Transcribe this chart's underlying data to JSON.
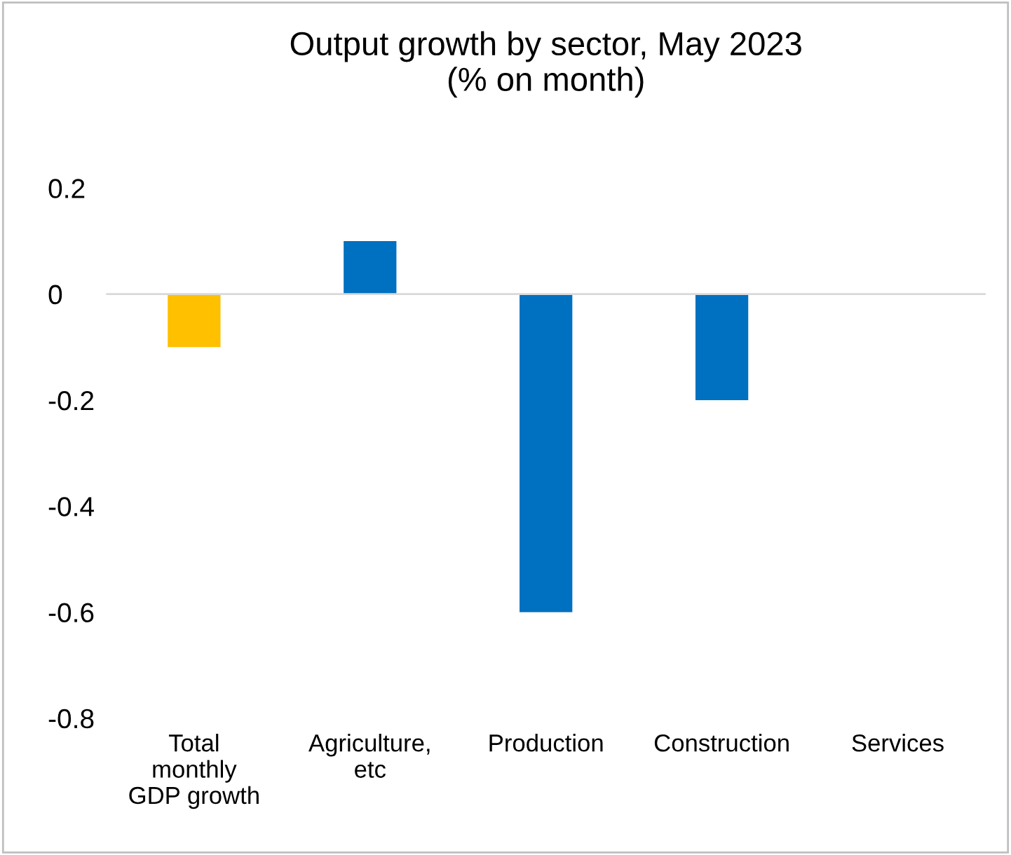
{
  "chart_data": {
    "type": "bar",
    "title": "Output growth by sector, May 2023\n(% on month)",
    "categories": [
      "Total\nmonthly\nGDP growth",
      "Agriculture,\netc",
      "Production",
      "Construction",
      "Services"
    ],
    "values": [
      -0.1,
      0.1,
      -0.6,
      -0.2,
      0
    ],
    "colors": [
      "#ffc000",
      "#0070c0",
      "#0070c0",
      "#0070c0",
      "#0070c0"
    ],
    "ylim": [
      -0.8,
      0.2
    ],
    "yticks": [
      0.2,
      0,
      {
        "value": -0.2,
        "label": "-0.2"
      },
      {
        "value": -0.4,
        "label": "-0.4"
      },
      {
        "value": -0.6,
        "label": "-0.6"
      },
      {
        "value": -0.8,
        "label": "-0.8"
      }
    ],
    "ref_lines": [
      {
        "axis": "y",
        "value": 0,
        "color": "#d9d9d9"
      }
    ],
    "grid": false
  }
}
